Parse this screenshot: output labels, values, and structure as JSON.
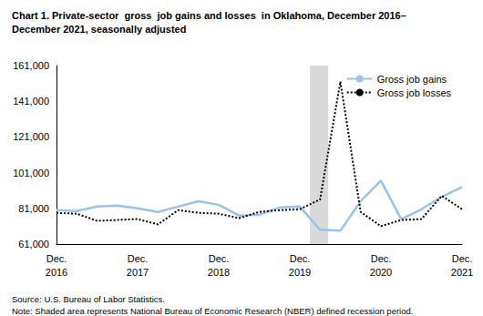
{
  "chart_data": {
    "type": "line",
    "title": "Chart 1. Private-sector  gross  job gains and losses  in Oklahoma, December 2016–\nDecember 2021, seasonally adjusted",
    "source": "Source: U.S. Bureau of Labor Statistics.",
    "note": "Note: Shaded area represents National Bureau of Economic Research (NBER) defined recession period.",
    "categories": [
      "Dec.\n2016",
      null,
      null,
      null,
      "Dec.\n2017",
      null,
      null,
      null,
      "Dec.\n2018",
      null,
      null,
      null,
      "Dec.\n2019",
      null,
      null,
      null,
      "Dec.\n2020",
      null,
      null,
      null,
      "Dec.\n2021"
    ],
    "series": [
      {
        "name": "Gross job gains",
        "color": "#99c2ee",
        "line_style": "solid",
        "values": [
          80000,
          79500,
          82000,
          82500,
          81000,
          79000,
          82000,
          85000,
          83000,
          77000,
          77500,
          81500,
          82000,
          69000,
          68500,
          85000,
          96500,
          75000,
          80500,
          87500,
          93000
        ]
      },
      {
        "name": "Gross job losses",
        "color": "#000000",
        "line_style": "dotted",
        "values": [
          78500,
          78000,
          74000,
          74500,
          75000,
          72000,
          80000,
          78500,
          78000,
          75500,
          79000,
          80000,
          80500,
          86000,
          152000,
          79000,
          71000,
          74500,
          75000,
          88000,
          80500
        ]
      }
    ],
    "recession": {
      "start": 12.5,
      "end": 13.4,
      "color": "#d9d9d9"
    },
    "ylim": [
      61000,
      161000
    ],
    "yticks": [
      {
        "value": 61000,
        "label": "61,000"
      },
      {
        "value": 81000,
        "label": "81,000"
      },
      {
        "value": 101000,
        "label": "101,000"
      },
      {
        "value": 121000,
        "label": "121,000"
      },
      {
        "value": 141000,
        "label": "141,000"
      },
      {
        "value": 161000,
        "label": "161,000"
      }
    ],
    "grid": false,
    "legend": "upper right"
  }
}
